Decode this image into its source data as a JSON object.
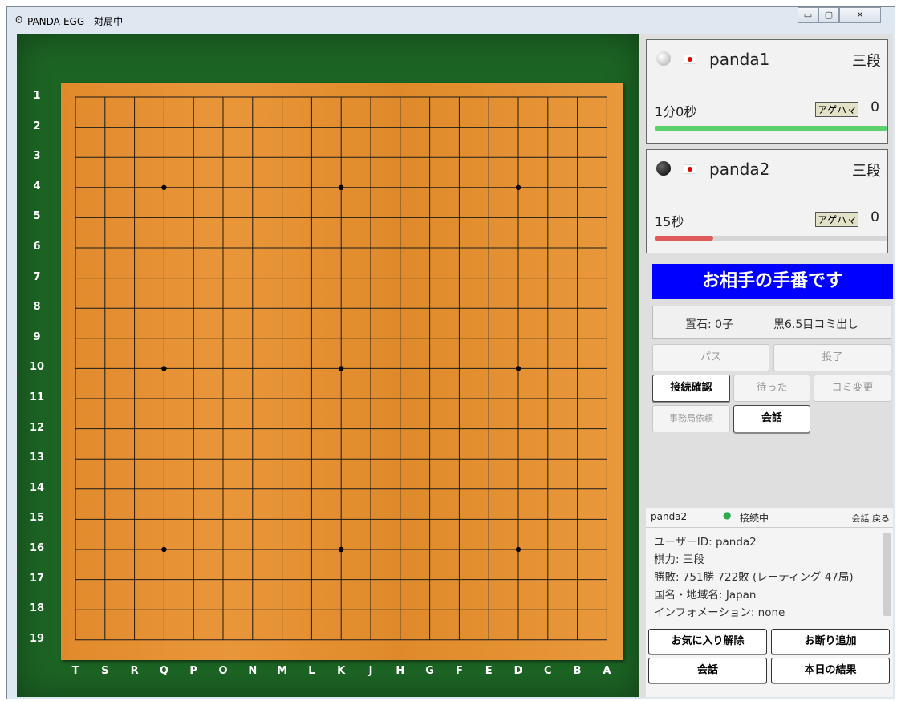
{
  "window": {
    "title": "PANDA-EGG - 対局中",
    "app_icon": "panda-icon",
    "controls": {
      "minimize": "▭",
      "maximize": "▢",
      "close": "✕"
    }
  },
  "board": {
    "size": 19,
    "row_labels": [
      "1",
      "2",
      "3",
      "4",
      "5",
      "6",
      "7",
      "8",
      "9",
      "10",
      "11",
      "12",
      "13",
      "14",
      "15",
      "16",
      "17",
      "18",
      "19"
    ],
    "col_labels": [
      "T",
      "S",
      "R",
      "Q",
      "P",
      "O",
      "N",
      "M",
      "L",
      "K",
      "J",
      "H",
      "G",
      "F",
      "E",
      "D",
      "C",
      "B",
      "A"
    ],
    "hoshi": [
      [
        3,
        3
      ],
      [
        9,
        3
      ],
      [
        15,
        3
      ],
      [
        3,
        9
      ],
      [
        9,
        9
      ],
      [
        15,
        9
      ],
      [
        3,
        15
      ],
      [
        9,
        15
      ],
      [
        15,
        15
      ]
    ],
    "colors": {
      "felt": "#1c6424",
      "wood": "#e58f33",
      "line": "#1a1a1a"
    }
  },
  "players": [
    {
      "name": "panda1",
      "rank": "三段",
      "time": "1分0秒",
      "agehama_label": "アゲハマ",
      "captures": "0",
      "stone": "white",
      "time_fraction": 1.0,
      "bar_color": "#5cd06c"
    },
    {
      "name": "panda2",
      "rank": "三段",
      "time": "15秒",
      "agehama_label": "アゲハマ",
      "captures": "0",
      "stone": "black",
      "time_fraction": 0.25,
      "bar_color": "#e05a5a"
    }
  ],
  "status": {
    "turn": "お相手の手番です",
    "turn_color": "#0000ff",
    "handicap": "置石: 0子",
    "komi": "黒6.5目コミ出し"
  },
  "buttons": {
    "pass": "パス",
    "resign": "投了",
    "connection_check": "接続確認",
    "undo": "待った",
    "komi_change": "コミ変更",
    "office_request": "事務局依頼",
    "chat": "会話"
  },
  "info": {
    "user": "panda2",
    "status": "接続中",
    "links": "会話 戻る",
    "status_color": "#2fa84f",
    "lines": [
      "ユーザーID: panda2",
      "棋力: 三段",
      "勝敗: 751勝 722敗 (レーティング 47局)",
      "国名・地域名: Japan",
      "インフォメーション: none"
    ]
  },
  "bottom_buttons": {
    "unfavorite": "お気に入り解除",
    "add_refusal": "お断り追加",
    "chat": "会話",
    "today_results": "本日の結果"
  }
}
